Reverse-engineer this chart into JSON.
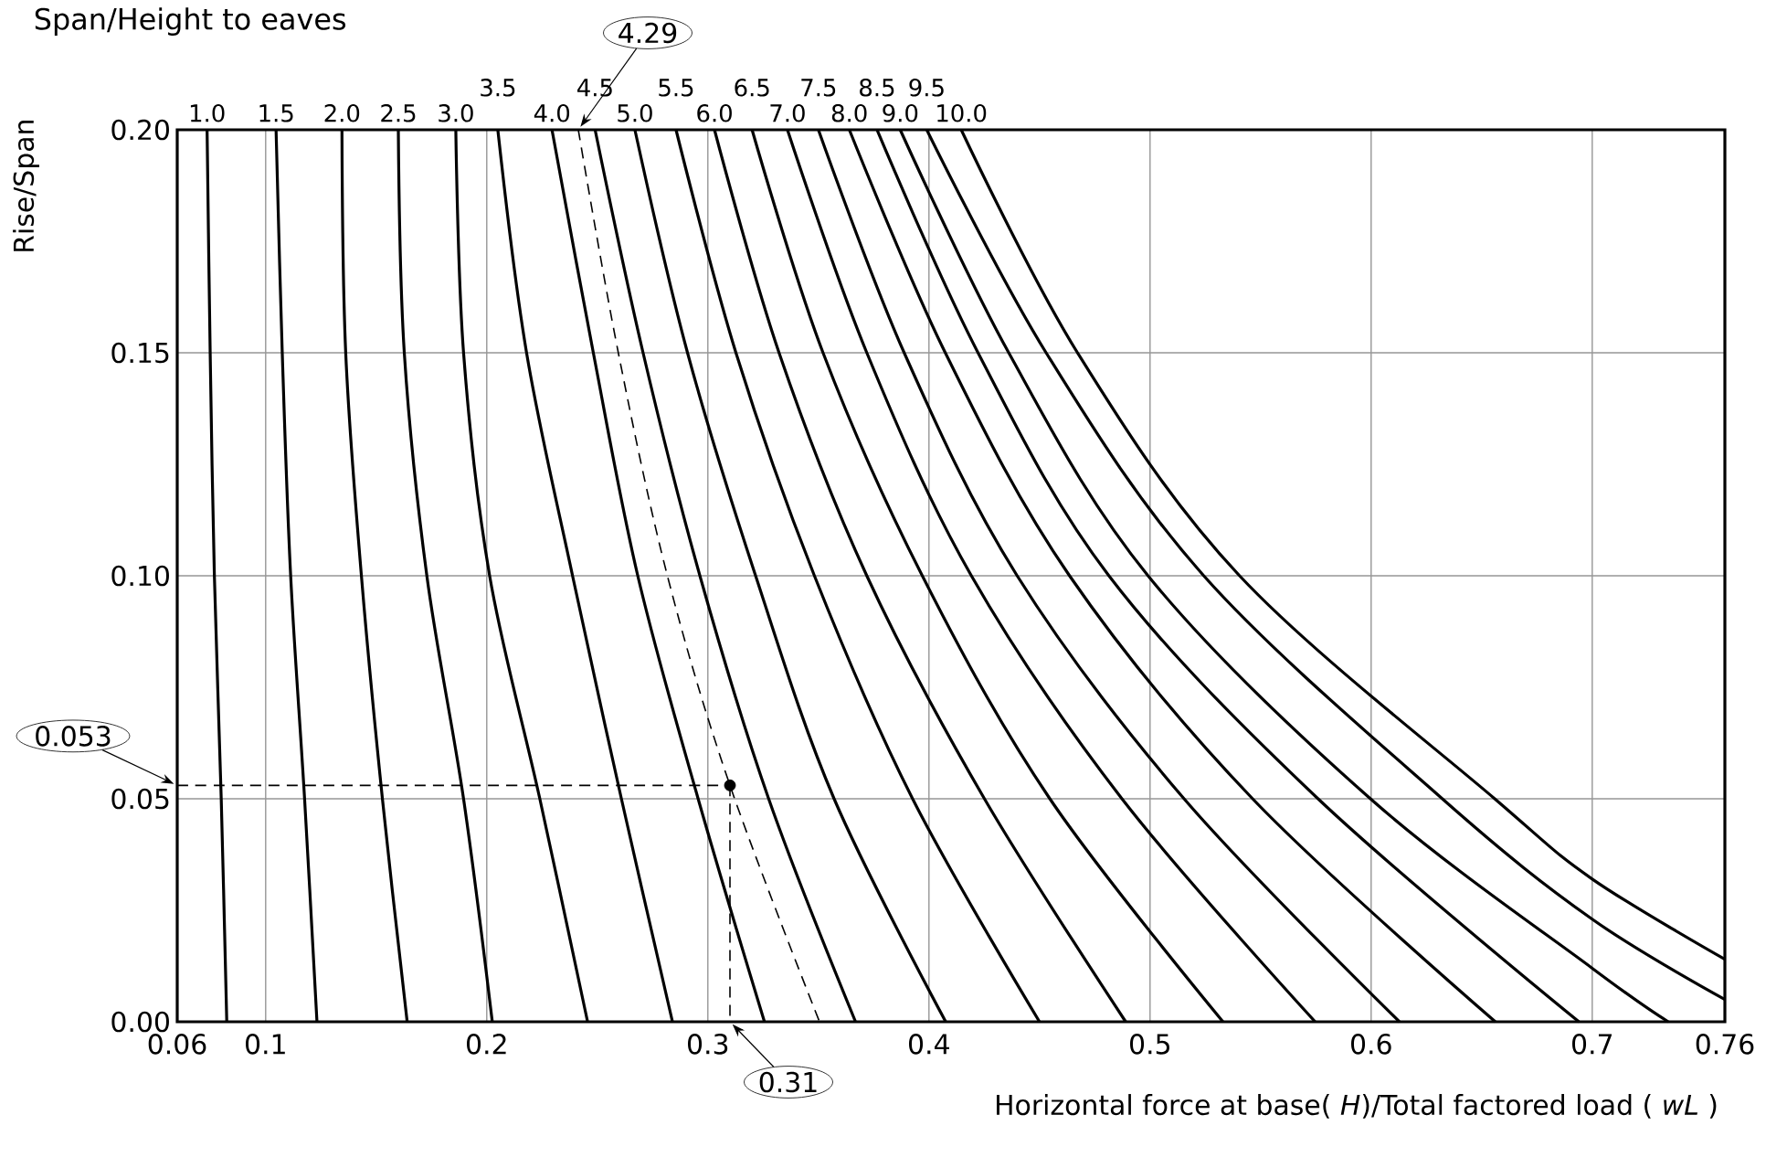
{
  "chart_data": {
    "type": "line",
    "title": "Span/Height to eaves",
    "xlabel": "Horizontal force at base( *H*)/Total factored load ( *wL* )",
    "ylabel": "Rise/Span",
    "xlim": [
      0.06,
      0.76
    ],
    "ylim": [
      0,
      0.2
    ],
    "xticks": [
      0.06,
      0.1,
      0.2,
      0.3,
      0.4,
      0.5,
      0.6,
      0.7,
      0.76
    ],
    "yticks": [
      {
        "value": 0,
        "label": "0.00"
      },
      {
        "value": 0.05,
        "label": "0.05"
      },
      {
        "value": 0.1,
        "label": "0.10"
      },
      {
        "value": 0.15,
        "label": "0.15"
      },
      {
        "value": 0.2,
        "label": "0.20"
      }
    ],
    "grid": true,
    "line_style": "solid",
    "series": [
      {
        "name": "1.0",
        "color": "#000000",
        "x": [
          0.0735,
          0.0749,
          0.0768,
          0.0799,
          0.0824
        ],
        "values": [
          0.2,
          0.15,
          0.1,
          0.05,
          0
        ]
      },
      {
        "name": "1.5",
        "color": "#000000",
        "x": [
          0.1047,
          0.1075,
          0.1113,
          0.1176,
          0.1232
        ],
        "values": [
          0.2,
          0.15,
          0.1,
          0.05,
          0
        ]
      },
      {
        "name": "2.0",
        "color": "#000000",
        "x": [
          0.1345,
          0.1362,
          0.1433,
          0.1528,
          0.164
        ],
        "values": [
          0.2,
          0.15,
          0.1,
          0.05,
          0
        ]
      },
      {
        "name": "2.5",
        "color": "#000000",
        "x": [
          0.16,
          0.1627,
          0.1729,
          0.1895,
          0.2025
        ],
        "values": [
          0.2,
          0.15,
          0.1,
          0.05,
          0
        ]
      },
      {
        "name": "3.0",
        "color": "#000000",
        "x": [
          0.186,
          0.1895,
          0.2013,
          0.224,
          0.2456
        ],
        "values": [
          0.2,
          0.15,
          0.1,
          0.05,
          0
        ]
      },
      {
        "name": "3.5",
        "color": "#000000",
        "x": [
          0.205,
          0.218,
          0.2388,
          0.2609,
          0.284
        ],
        "values": [
          0.2,
          0.15,
          0.1,
          0.05,
          0
        ]
      },
      {
        "name": "4.0",
        "color": "#000000",
        "x": [
          0.2295,
          0.2482,
          0.2683,
          0.2956,
          0.3256
        ],
        "values": [
          0.2,
          0.15,
          0.1,
          0.05,
          0
        ]
      },
      {
        "name": "4.5",
        "color": "#000000",
        "x": [
          0.249,
          0.2707,
          0.2964,
          0.3275,
          0.3668
        ],
        "values": [
          0.2,
          0.15,
          0.1,
          0.05,
          0
        ]
      },
      {
        "name": "5.0",
        "color": "#000000",
        "x": [
          0.267,
          0.2908,
          0.3216,
          0.3571,
          0.4076
        ],
        "values": [
          0.2,
          0.15,
          0.1,
          0.05,
          0
        ]
      },
      {
        "name": "5.5",
        "color": "#000000",
        "x": [
          0.2856,
          0.3127,
          0.3482,
          0.3926,
          0.45
        ],
        "values": [
          0.2,
          0.15,
          0.1,
          0.05,
          0
        ]
      },
      {
        "name": "6.0",
        "color": "#000000",
        "x": [
          0.303,
          0.3322,
          0.3719,
          0.4251,
          0.489
        ],
        "values": [
          0.2,
          0.15,
          0.1,
          0.05,
          0
        ]
      },
      {
        "name": "6.5",
        "color": "#000000",
        "x": [
          0.32,
          0.3521,
          0.397,
          0.4547,
          0.533
        ],
        "values": [
          0.2,
          0.15,
          0.1,
          0.05,
          0
        ]
      },
      {
        "name": "7.0",
        "color": "#000000",
        "x": [
          0.336,
          0.3719,
          0.4192,
          0.4873,
          0.5747
        ],
        "values": [
          0.2,
          0.15,
          0.1,
          0.05,
          0
        ]
      },
      {
        "name": "7.5",
        "color": "#000000",
        "x": [
          0.35,
          0.3888,
          0.4399,
          0.5154,
          0.6128
        ],
        "values": [
          0.2,
          0.15,
          0.1,
          0.05,
          0
        ]
      },
      {
        "name": "8.0",
        "color": "#000000",
        "x": [
          0.364,
          0.4074,
          0.4636,
          0.5464,
          0.6562
        ],
        "values": [
          0.2,
          0.15,
          0.1,
          0.05,
          0
        ]
      },
      {
        "name": "8.5",
        "color": "#000000",
        "x": [
          0.3765,
          0.4222,
          0.4814,
          0.576,
          0.694
        ],
        "values": [
          0.2,
          0.15,
          0.1,
          0.05,
          0
        ]
      },
      {
        "name": "9.0",
        "color": "#000000",
        "x": [
          0.387,
          0.4361,
          0.4991,
          0.5997,
          0.7,
          0.7344
        ],
        "values": [
          0.2,
          0.15,
          0.1,
          0.05,
          0.012,
          0
        ]
      },
      {
        "name": "9.5",
        "color": "#000000",
        "x": [
          0.399,
          0.453,
          0.5243,
          0.6322,
          0.7,
          0.76
        ],
        "values": [
          0.2,
          0.15,
          0.1,
          0.05,
          0.023,
          0.005
        ]
      },
      {
        "name": "10.0",
        "color": "#000000",
        "x": [
          0.4146,
          0.4672,
          0.5405,
          0.6559,
          0.7,
          0.76
        ],
        "values": [
          0.2,
          0.15,
          0.1,
          0.05,
          0.032,
          0.014
        ]
      },
      {
        "type": "line",
        "line_style": "dashed",
        "color": "#000000",
        "x": [
          0.2414,
          0.2595,
          0.2817,
          0.31,
          0.3505
        ],
        "values": [
          0.2,
          0.15,
          0.1,
          0.053,
          0
        ]
      },
      {
        "type": "line",
        "line_style": "dashed",
        "color": "#000000",
        "x": [
          0.06,
          0.31
        ],
        "values": [
          0.053,
          0.053
        ]
      },
      {
        "type": "line",
        "line_style": "dashed",
        "color": "#000000",
        "x": [
          0.31,
          0.31
        ],
        "values": [
          0.053,
          0
        ]
      },
      {
        "type": "scatter",
        "marker": "circle",
        "color": "#000000",
        "x": [
          0.31
        ],
        "values": [
          0.053
        ]
      }
    ],
    "annotations": [
      {
        "text": "4.29",
        "x": 0.2414,
        "y": 0.2
      },
      {
        "text": "0.053",
        "x": 0.06,
        "y": 0.053
      },
      {
        "text": "0.31",
        "x": 0.31,
        "y": 0
      }
    ]
  }
}
